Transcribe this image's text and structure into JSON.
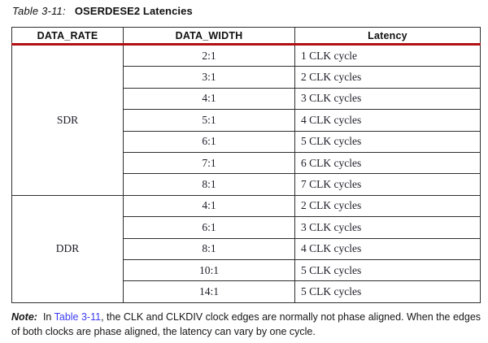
{
  "title": {
    "label": "Table 3-11:",
    "name": "OSERDESE2 Latencies"
  },
  "table": {
    "headers": [
      "DATA_RATE",
      "DATA_WIDTH",
      "Latency"
    ],
    "groups": [
      {
        "data_rate": "SDR",
        "rows": [
          {
            "data_width": "2:1",
            "latency": "1 CLK cycle"
          },
          {
            "data_width": "3:1",
            "latency": "2 CLK cycles"
          },
          {
            "data_width": "4:1",
            "latency": "3 CLK cycles"
          },
          {
            "data_width": "5:1",
            "latency": "4 CLK cycles"
          },
          {
            "data_width": "6:1",
            "latency": "5 CLK cycles"
          },
          {
            "data_width": "7:1",
            "latency": "6 CLK cycles"
          },
          {
            "data_width": "8:1",
            "latency": "7 CLK cycles"
          }
        ]
      },
      {
        "data_rate": "DDR",
        "rows": [
          {
            "data_width": "4:1",
            "latency": "2 CLK cycles"
          },
          {
            "data_width": "6:1",
            "latency": "3 CLK cycles"
          },
          {
            "data_width": "8:1",
            "latency": "4 CLK cycles"
          },
          {
            "data_width": "10:1",
            "latency": "5 CLK cycles"
          },
          {
            "data_width": "14:1",
            "latency": "5 CLK cycles"
          }
        ]
      }
    ]
  },
  "note": {
    "label": "Note:",
    "before_link": "In ",
    "link": "Table 3-11",
    "after_link": ", the CLK and CLKDIV clock edges are normally not phase aligned. When the edges of both clocks are phase aligned, the latency can vary by one cycle."
  },
  "colors": {
    "header_rule_red": "#b00f14",
    "link_blue": "#3c3cf2",
    "border_dark": "#2e2e2e"
  }
}
